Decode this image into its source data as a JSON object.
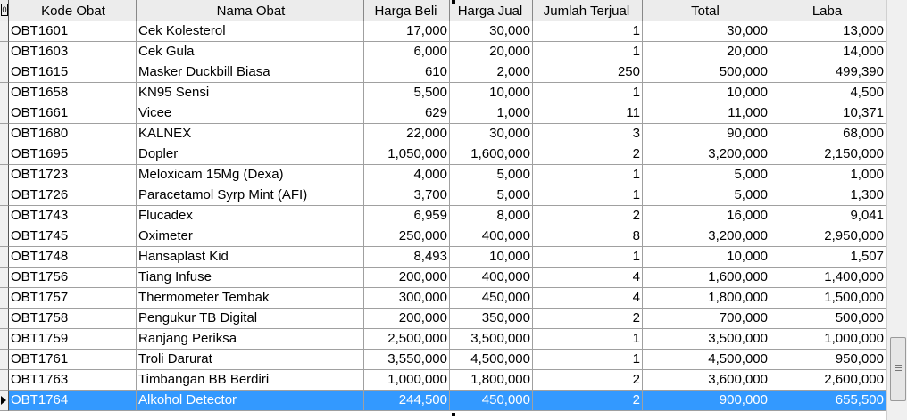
{
  "columns": [
    "Kode Obat",
    "Nama Obat",
    "Harga Beli",
    "Harga Jual",
    "Jumlah Terjual",
    "Total",
    "Laba"
  ],
  "rows": [
    [
      "OBT1601",
      "Cek Kolesterol",
      "17,000",
      "30,000",
      "1",
      "30,000",
      "13,000"
    ],
    [
      "OBT1603",
      "Cek Gula",
      "6,000",
      "20,000",
      "1",
      "20,000",
      "14,000"
    ],
    [
      "OBT1615",
      "Masker Duckbill Biasa",
      "610",
      "2,000",
      "250",
      "500,000",
      "499,390"
    ],
    [
      "OBT1658",
      "KN95 Sensi",
      "5,500",
      "10,000",
      "1",
      "10,000",
      "4,500"
    ],
    [
      "OBT1661",
      "Vicee",
      "629",
      "1,000",
      "11",
      "11,000",
      "10,371"
    ],
    [
      "OBT1680",
      "KALNEX",
      "22,000",
      "30,000",
      "3",
      "90,000",
      "68,000"
    ],
    [
      "OBT1695",
      "Dopler",
      "1,050,000",
      "1,600,000",
      "2",
      "3,200,000",
      "2,150,000"
    ],
    [
      "OBT1723",
      "Meloxicam 15Mg (Dexa)",
      "4,000",
      "5,000",
      "1",
      "5,000",
      "1,000"
    ],
    [
      "OBT1726",
      "Paracetamol Syrp Mint (AFI)",
      "3,700",
      "5,000",
      "1",
      "5,000",
      "1,300"
    ],
    [
      "OBT1743",
      "Flucadex",
      "6,959",
      "8,000",
      "2",
      "16,000",
      "9,041"
    ],
    [
      "OBT1745",
      "Oximeter",
      "250,000",
      "400,000",
      "8",
      "3,200,000",
      "2,950,000"
    ],
    [
      "OBT1748",
      "Hansaplast Kid",
      "8,493",
      "10,000",
      "1",
      "10,000",
      "1,507"
    ],
    [
      "OBT1756",
      "Tiang Infuse",
      "200,000",
      "400,000",
      "4",
      "1,600,000",
      "1,400,000"
    ],
    [
      "OBT1757",
      "Thermometer Tembak",
      "300,000",
      "450,000",
      "4",
      "1,800,000",
      "1,500,000"
    ],
    [
      "OBT1758",
      "Pengukur TB Digital",
      "200,000",
      "350,000",
      "2",
      "700,000",
      "500,000"
    ],
    [
      "OBT1759",
      "Ranjang Periksa",
      "2,500,000",
      "3,500,000",
      "1",
      "3,500,000",
      "1,000,000"
    ],
    [
      "OBT1761",
      "Troli Darurat",
      "3,550,000",
      "4,500,000",
      "1",
      "4,500,000",
      "950,000"
    ],
    [
      "OBT1763",
      "Timbangan BB Berdiri",
      "1,000,000",
      "1,800,000",
      "2",
      "3,600,000",
      "2,600,000"
    ],
    [
      "OBT1764",
      "Alkohol Detector",
      "244,500",
      "450,000",
      "2",
      "900,000",
      "655,500"
    ]
  ],
  "selected_row": 18,
  "colors": {
    "selection": "#3399ff",
    "grid": "#a0a0a0",
    "header": "#ececec"
  },
  "icons": {
    "corner": "record-selector-icon",
    "pointer": "current-row-pointer-icon",
    "scroll": "scroll-thumb-icon"
  }
}
